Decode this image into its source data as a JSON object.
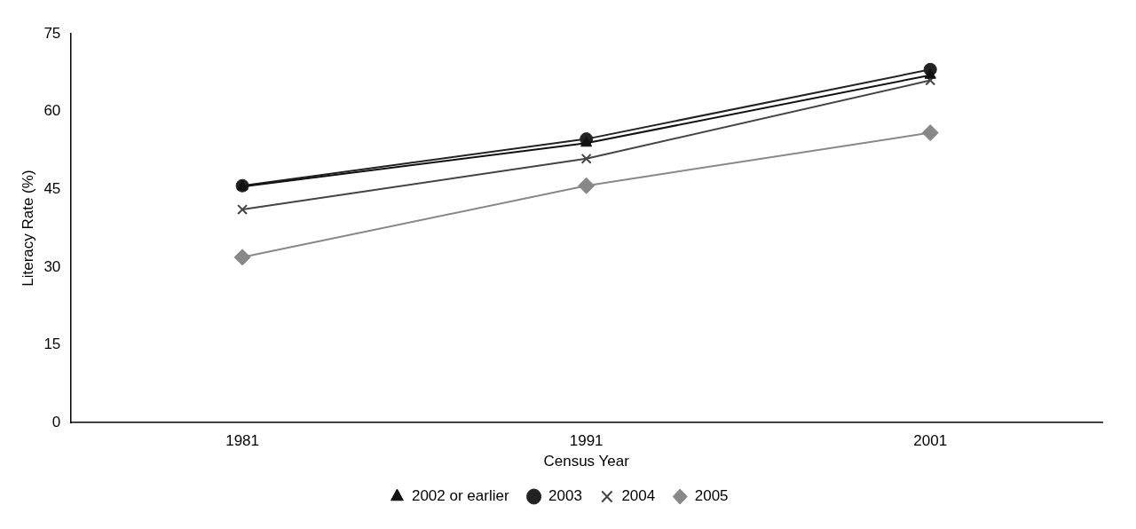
{
  "chart_data": {
    "type": "line",
    "xlabel": "Census Year",
    "ylabel": "Literacy Rate (%)",
    "categories": [
      "1981",
      "1991",
      "2001"
    ],
    "ylim": [
      0,
      75
    ],
    "yticks": [
      0,
      15,
      30,
      45,
      60,
      75
    ],
    "grid": false,
    "legend": "bottom",
    "line_style": "solid",
    "series": [
      {
        "name": "2002 or earlier",
        "color": "#111111",
        "marker": "triangle",
        "values": [
          45.5,
          53.9,
          67.0
        ]
      },
      {
        "name": "2003",
        "color": "#222222",
        "marker": "circle",
        "values": [
          45.7,
          54.7,
          68.1
        ]
      },
      {
        "name": "2004",
        "color": "#444444",
        "marker": "cross",
        "values": [
          41.1,
          50.9,
          66.0
        ]
      },
      {
        "name": "2005",
        "color": "#888888",
        "marker": "diamond",
        "values": [
          31.9,
          45.7,
          55.9
        ]
      }
    ]
  }
}
